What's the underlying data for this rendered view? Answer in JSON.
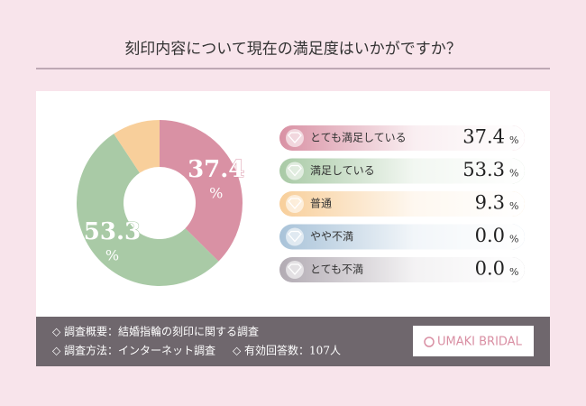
{
  "chart_data": {
    "type": "donut",
    "title": "刻印内容について現在の満足度はいかがですか？",
    "categories": [
      "とても満足している",
      "満足している",
      "普通",
      "やや不満",
      "とても不満"
    ],
    "values": [
      37.4,
      53.3,
      9.3,
      0,
      0
    ],
    "value_labels": [
      "37.4",
      "53.3",
      "9.3",
      "0.0",
      "0.0"
    ],
    "unit": "%",
    "colors": [
      "#d991a4",
      "#a9caa6",
      "#f8cf9b",
      "#a9c3d9",
      "#b2abb3"
    ]
  },
  "footer": {
    "survey": "◇ 調査概要：結婚指輪の刻印に関する調査",
    "method": "◇ 調査方法：インターネット調査",
    "respondents": "◇ 有効回答数：107人",
    "logo": "UMAKI BRIDAL"
  }
}
